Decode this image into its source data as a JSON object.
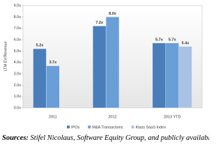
{
  "chart_data": {
    "type": "bar",
    "y_label": "LTM EV/Revenue",
    "categories": [
      "2011",
      "2012",
      "2013 YTD"
    ],
    "series": [
      {
        "name": "IPOs",
        "color": "#4a7ebb",
        "values": [
          5.2,
          7.2,
          5.7
        ],
        "value_labels": [
          "5.2x",
          "7.2x",
          "5.7x"
        ]
      },
      {
        "name": "M&A Transactions",
        "color": "#6a9ed6",
        "values": [
          3.7,
          8.0,
          5.7
        ],
        "value_labels": [
          "3.7x",
          "8.0x",
          "5.7x"
        ]
      },
      {
        "name": "Klass SaaS Index",
        "color": "#a9c2e4",
        "values": [
          null,
          null,
          5.4
        ],
        "value_labels": [
          null,
          null,
          "5.4x"
        ]
      }
    ],
    "ylim": [
      0,
      9
    ],
    "yticks": [
      {
        "value": 0,
        "label": "0.0x"
      },
      {
        "value": 1,
        "label": "1.0x"
      },
      {
        "value": 2,
        "label": "2.0x"
      },
      {
        "value": 3,
        "label": "3.0x"
      },
      {
        "value": 4,
        "label": "4.0x"
      },
      {
        "value": 5,
        "label": "5.0x"
      },
      {
        "value": 6,
        "label": "6.0x"
      },
      {
        "value": 7,
        "label": "7.0x"
      },
      {
        "value": 8,
        "label": "8.0x"
      },
      {
        "value": 9,
        "label": "9.0x"
      }
    ],
    "grid": false
  },
  "source": {
    "label": "Sources:",
    "text": "Stifel Nicolaus, Software Equity Group, and publicly available data"
  }
}
